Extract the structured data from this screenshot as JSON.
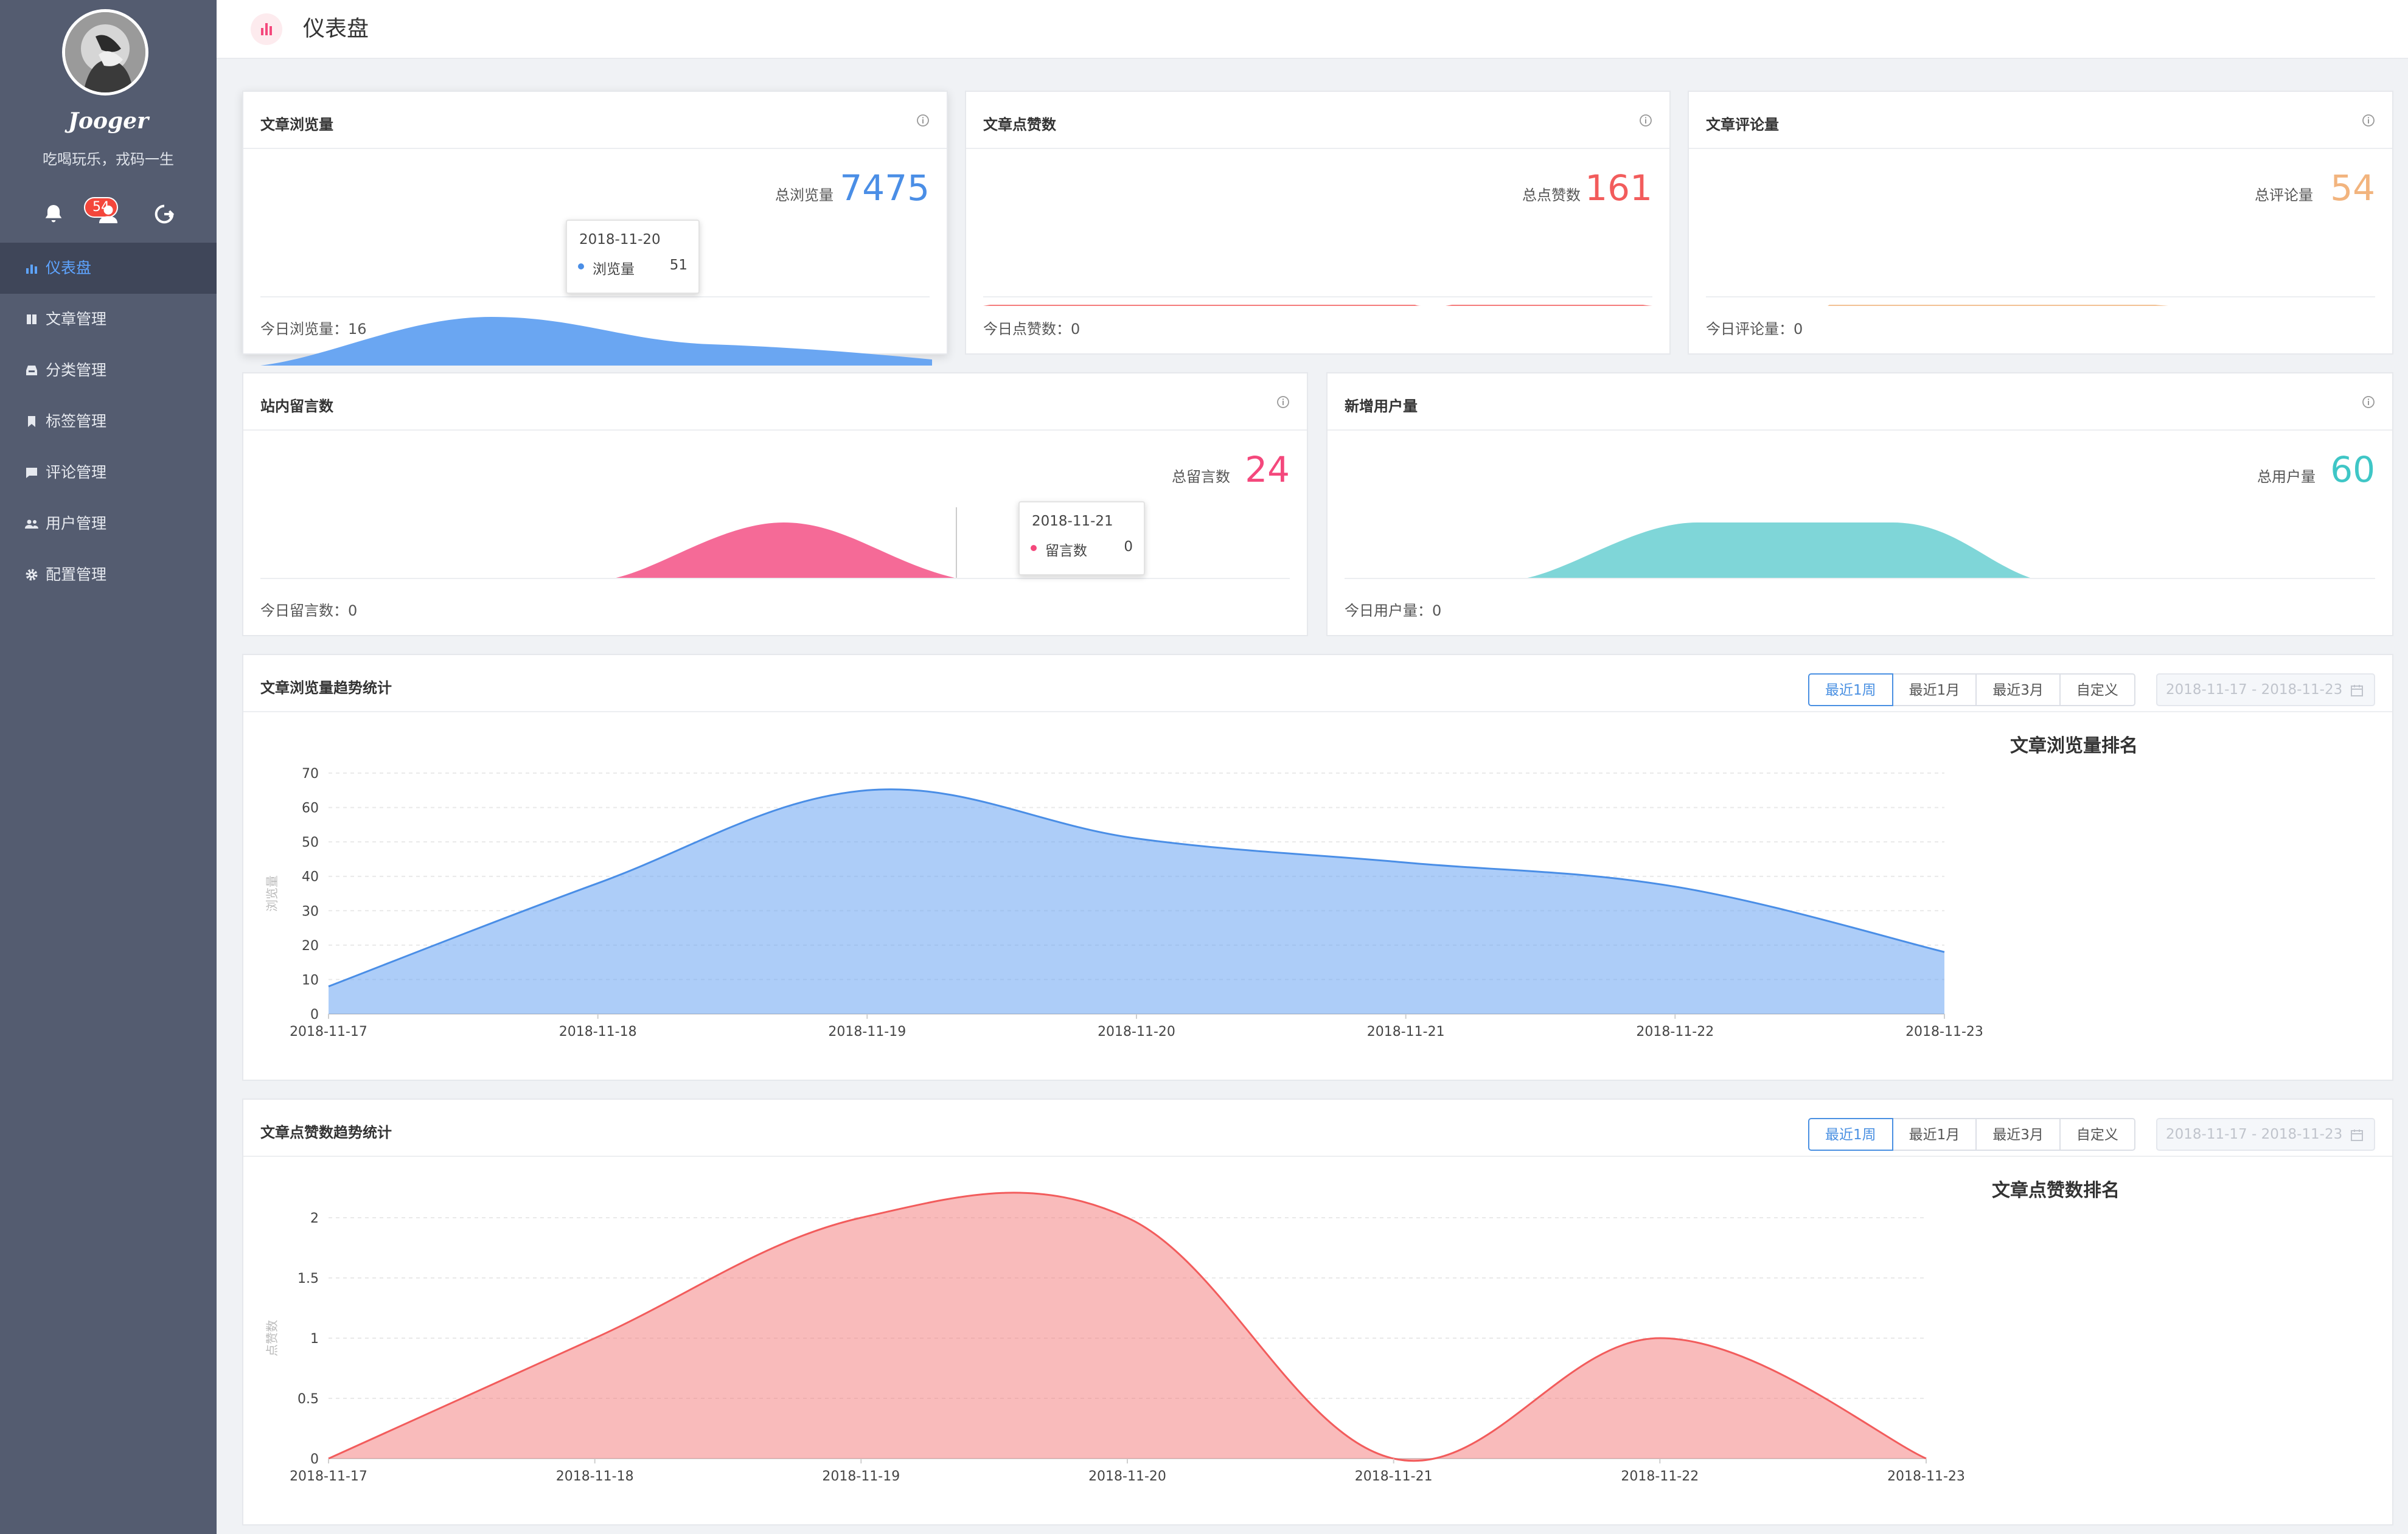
{
  "sidebar": {
    "user_name": "Jooger",
    "motto": "吃喝玩乐，戎码一生",
    "notification_count": "54",
    "menu": [
      {
        "label": "仪表盘",
        "icon": "bar-chart-icon",
        "active": true
      },
      {
        "label": "文章管理",
        "icon": "book-icon",
        "active": false
      },
      {
        "label": "分类管理",
        "icon": "inbox-icon",
        "active": false
      },
      {
        "label": "标签管理",
        "icon": "bookmark-icon",
        "active": false
      },
      {
        "label": "评论管理",
        "icon": "comment-icon",
        "active": false
      },
      {
        "label": "用户管理",
        "icon": "users-icon",
        "active": false
      },
      {
        "label": "配置管理",
        "icon": "gear-icon",
        "active": false
      }
    ]
  },
  "header": {
    "title": "仪表盘"
  },
  "colors": {
    "blue": "#4a8ee6",
    "red": "#f25c5c",
    "orange": "#f2b47e",
    "pink": "#f4487c",
    "teal": "#3fc6c6"
  },
  "cards": {
    "views": {
      "title": "文章浏览量",
      "total_label": "总浏览量",
      "total": "7475",
      "today_label": "今日浏览量：",
      "today": "16",
      "tooltip": {
        "date": "2018-11-20",
        "label": "浏览量",
        "value": "51"
      }
    },
    "likes": {
      "title": "文章点赞数",
      "total_label": "总点赞数",
      "total": "161",
      "today_label": "今日点赞数：",
      "today": "0"
    },
    "comments": {
      "title": "文章评论量",
      "total_label": "总评论量",
      "total": "54",
      "today_label": "今日评论量：",
      "today": "0"
    },
    "messages": {
      "title": "站内留言数",
      "total_label": "总留言数",
      "total": "24",
      "today_label": "今日留言数：",
      "today": "0",
      "tooltip": {
        "date": "2018-11-21",
        "label": "留言数",
        "value": "0"
      }
    },
    "users": {
      "title": "新增用户量",
      "total_label": "总用户量",
      "total": "60",
      "today_label": "今日用户量：",
      "today": "0"
    }
  },
  "range_buttons": [
    "最近1周",
    "最近1月",
    "最近3月",
    "自定义"
  ],
  "date_range": "2018-11-17 - 2018-11-23",
  "trend_views": {
    "title": "文章浏览量趋势统计",
    "rank_title": "文章浏览量排名"
  },
  "trend_likes": {
    "title": "文章点赞数趋势统计",
    "rank_title": "文章点赞数排名"
  },
  "chart_data": [
    {
      "type": "area",
      "ylabel": "浏览量",
      "x": [
        "2018-11-17",
        "2018-11-18",
        "2018-11-19",
        "2018-11-20",
        "2018-11-21",
        "2018-11-22",
        "2018-11-23"
      ],
      "series": [
        {
          "name": "浏览量",
          "values": [
            8,
            38,
            65,
            51,
            44,
            37,
            18
          ]
        }
      ],
      "ylim": [
        0,
        70
      ],
      "yticks": [
        0,
        10,
        20,
        30,
        40,
        50,
        60,
        70
      ]
    },
    {
      "type": "area",
      "ylabel": "点赞数",
      "x": [
        "2018-11-17",
        "2018-11-18",
        "2018-11-19",
        "2018-11-20",
        "2018-11-21",
        "2018-11-22",
        "2018-11-23"
      ],
      "series": [
        {
          "name": "点赞数",
          "values": [
            0,
            1,
            2,
            2,
            0,
            1,
            0
          ]
        }
      ],
      "ylim": [
        0,
        2
      ],
      "yticks": [
        0,
        0.5,
        1,
        1.5,
        2
      ]
    }
  ]
}
